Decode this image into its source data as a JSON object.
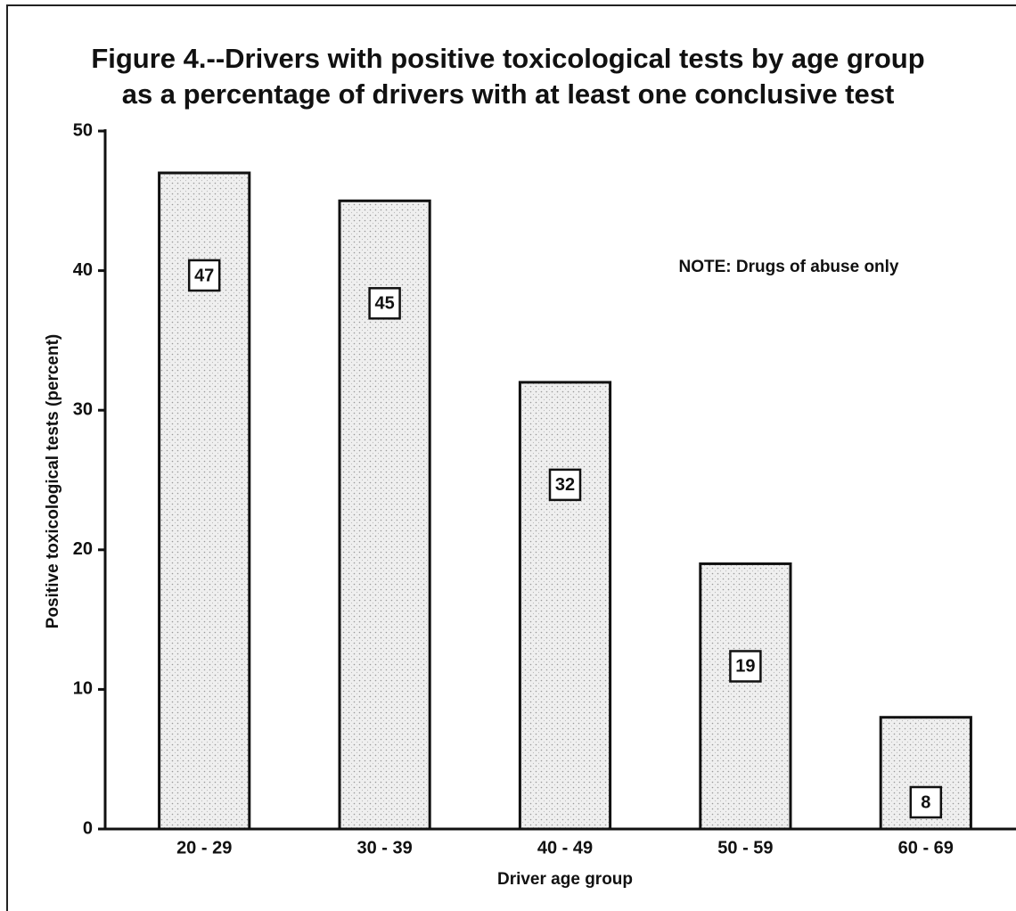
{
  "chart_data": {
    "type": "bar",
    "title": "Figure 4.--Drivers with positive toxicological tests by age group",
    "subtitle": "as a percentage of drivers with at least one conclusive test",
    "x_label": "Driver age group",
    "y_label": "Positive toxicological tests (percent)",
    "annotation": "NOTE: Drugs of abuse only",
    "categories": [
      "20 - 29",
      "30 - 39",
      "40 - 49",
      "50 - 59",
      "60 - 69"
    ],
    "values": [
      47,
      45,
      32,
      19,
      8
    ],
    "color": "#e4e4e4",
    "ylim": [
      0,
      50
    ],
    "yticks": [
      0,
      10,
      20,
      30,
      40,
      50
    ],
    "grid": false
  }
}
